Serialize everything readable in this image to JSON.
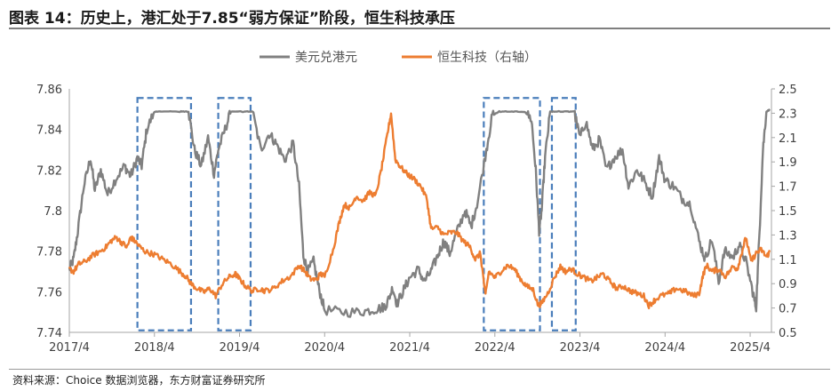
{
  "title": "图表 14：历史上，港汇处于7.85“弱方保证”阶段，恒生科技承压",
  "source": "资料来源：Choice 数据浏览器，东方财富证券研究所",
  "chart_data": {
    "type": "line",
    "x_tick_labels": [
      "2017/4",
      "2018/4",
      "2019/4",
      "2020/4",
      "2021/4",
      "2022/4",
      "2023/4",
      "2024/4",
      "2025/4"
    ],
    "x_range": [
      2017.25,
      2025.5
    ],
    "y_left": {
      "ticks": [
        "7.74",
        "7.76",
        "7.78",
        "7.8",
        "7.82",
        "7.84",
        "7.86"
      ],
      "range": [
        7.74,
        7.86
      ]
    },
    "y_right": {
      "ticks": [
        "0.5",
        "0.7",
        "0.9",
        "1.1",
        "1.3",
        "1.5",
        "1.7",
        "1.9",
        "2.1",
        "2.3",
        "2.5"
      ],
      "range": [
        0.5,
        2.5
      ]
    },
    "legend_position": "top-center",
    "colors": {
      "usdhkd": "#808080",
      "hstech": "#ED7D31",
      "box": "#4A7EBB"
    },
    "series": [
      {
        "name": "美元兑港元",
        "axis": "left",
        "points": [
          [
            2017.25,
            7.771
          ],
          [
            2017.3,
            7.776
          ],
          [
            2017.35,
            7.79
          ],
          [
            2017.42,
            7.812
          ],
          [
            2017.5,
            7.826
          ],
          [
            2017.55,
            7.81
          ],
          [
            2017.62,
            7.82
          ],
          [
            2017.7,
            7.808
          ],
          [
            2017.8,
            7.816
          ],
          [
            2017.9,
            7.822
          ],
          [
            2017.97,
            7.817
          ],
          [
            2018.05,
            7.826
          ],
          [
            2018.1,
            7.822
          ],
          [
            2018.16,
            7.84
          ],
          [
            2018.25,
            7.849
          ],
          [
            2018.4,
            7.849
          ],
          [
            2018.55,
            7.849
          ],
          [
            2018.65,
            7.849
          ],
          [
            2018.72,
            7.83
          ],
          [
            2018.8,
            7.822
          ],
          [
            2018.88,
            7.836
          ],
          [
            2018.95,
            7.818
          ],
          [
            2019.0,
            7.83
          ],
          [
            2019.08,
            7.84
          ],
          [
            2019.15,
            7.849
          ],
          [
            2019.28,
            7.849
          ],
          [
            2019.4,
            7.849
          ],
          [
            2019.5,
            7.83
          ],
          [
            2019.6,
            7.838
          ],
          [
            2019.68,
            7.833
          ],
          [
            2019.78,
            7.825
          ],
          [
            2019.88,
            7.833
          ],
          [
            2019.95,
            7.812
          ],
          [
            2020.0,
            7.778
          ],
          [
            2020.05,
            7.77
          ],
          [
            2020.12,
            7.775
          ],
          [
            2020.18,
            7.762
          ],
          [
            2020.25,
            7.751
          ],
          [
            2020.45,
            7.75
          ],
          [
            2020.65,
            7.75
          ],
          [
            2020.8,
            7.751
          ],
          [
            2020.92,
            7.752
          ],
          [
            2020.98,
            7.754
          ],
          [
            2021.05,
            7.762
          ],
          [
            2021.1,
            7.754
          ],
          [
            2021.18,
            7.761
          ],
          [
            2021.25,
            7.767
          ],
          [
            2021.35,
            7.771
          ],
          [
            2021.42,
            7.765
          ],
          [
            2021.5,
            7.77
          ],
          [
            2021.58,
            7.778
          ],
          [
            2021.65,
            7.785
          ],
          [
            2021.72,
            7.779
          ],
          [
            2021.8,
            7.789
          ],
          [
            2021.9,
            7.8
          ],
          [
            2021.97,
            7.792
          ],
          [
            2022.05,
            7.805
          ],
          [
            2022.15,
            7.83
          ],
          [
            2022.22,
            7.847
          ],
          [
            2022.3,
            7.849
          ],
          [
            2022.45,
            7.849
          ],
          [
            2022.6,
            7.849
          ],
          [
            2022.68,
            7.845
          ],
          [
            2022.73,
            7.82
          ],
          [
            2022.77,
            7.79
          ],
          [
            2022.8,
            7.8
          ],
          [
            2022.84,
            7.826
          ],
          [
            2022.9,
            7.849
          ],
          [
            2023.0,
            7.849
          ],
          [
            2023.1,
            7.849
          ],
          [
            2023.18,
            7.849
          ],
          [
            2023.25,
            7.836
          ],
          [
            2023.32,
            7.844
          ],
          [
            2023.4,
            7.83
          ],
          [
            2023.48,
            7.835
          ],
          [
            2023.56,
            7.82
          ],
          [
            2023.65,
            7.826
          ],
          [
            2023.75,
            7.83
          ],
          [
            2023.82,
            7.812
          ],
          [
            2023.92,
            7.82
          ],
          [
            2024.0,
            7.815
          ],
          [
            2024.1,
            7.807
          ],
          [
            2024.18,
            7.826
          ],
          [
            2024.25,
            7.815
          ],
          [
            2024.35,
            7.812
          ],
          [
            2024.45,
            7.806
          ],
          [
            2024.55,
            7.803
          ],
          [
            2024.65,
            7.785
          ],
          [
            2024.72,
            7.776
          ],
          [
            2024.8,
            7.786
          ],
          [
            2024.88,
            7.765
          ],
          [
            2024.95,
            7.78
          ],
          [
            2025.05,
            7.777
          ],
          [
            2025.12,
            7.783
          ],
          [
            2025.2,
            7.775
          ],
          [
            2025.28,
            7.76
          ],
          [
            2025.32,
            7.752
          ],
          [
            2025.36,
            7.79
          ],
          [
            2025.4,
            7.83
          ],
          [
            2025.44,
            7.849
          ],
          [
            2025.48,
            7.85
          ]
        ]
      },
      {
        "name": "恒生科技（右轴）",
        "axis": "right",
        "points": [
          [
            2017.25,
            1.02
          ],
          [
            2017.3,
            1.0
          ],
          [
            2017.36,
            1.06
          ],
          [
            2017.43,
            1.08
          ],
          [
            2017.52,
            1.13
          ],
          [
            2017.6,
            1.16
          ],
          [
            2017.68,
            1.2
          ],
          [
            2017.74,
            1.25
          ],
          [
            2017.8,
            1.28
          ],
          [
            2017.86,
            1.24
          ],
          [
            2017.93,
            1.2
          ],
          [
            2017.97,
            1.28
          ],
          [
            2018.02,
            1.25
          ],
          [
            2018.08,
            1.2
          ],
          [
            2018.15,
            1.16
          ],
          [
            2018.25,
            1.14
          ],
          [
            2018.35,
            1.1
          ],
          [
            2018.45,
            1.06
          ],
          [
            2018.55,
            1.0
          ],
          [
            2018.62,
            0.96
          ],
          [
            2018.68,
            0.9
          ],
          [
            2018.75,
            0.86
          ],
          [
            2018.83,
            0.83
          ],
          [
            2018.9,
            0.86
          ],
          [
            2018.97,
            0.8
          ],
          [
            2019.05,
            0.9
          ],
          [
            2019.12,
            0.95
          ],
          [
            2019.2,
            0.98
          ],
          [
            2019.25,
            0.94
          ],
          [
            2019.32,
            0.88
          ],
          [
            2019.4,
            0.84
          ],
          [
            2019.48,
            0.86
          ],
          [
            2019.55,
            0.84
          ],
          [
            2019.65,
            0.86
          ],
          [
            2019.75,
            0.92
          ],
          [
            2019.85,
            0.96
          ],
          [
            2019.95,
            1.05
          ],
          [
            2020.02,
            1.0
          ],
          [
            2020.08,
            0.94
          ],
          [
            2020.15,
            0.93
          ],
          [
            2020.2,
            0.98
          ],
          [
            2020.25,
            0.96
          ],
          [
            2020.35,
            1.18
          ],
          [
            2020.42,
            1.4
          ],
          [
            2020.48,
            1.55
          ],
          [
            2020.55,
            1.52
          ],
          [
            2020.62,
            1.62
          ],
          [
            2020.7,
            1.58
          ],
          [
            2020.78,
            1.65
          ],
          [
            2020.85,
            1.62
          ],
          [
            2020.92,
            1.85
          ],
          [
            2020.98,
            2.1
          ],
          [
            2021.03,
            2.3
          ],
          [
            2021.08,
            1.92
          ],
          [
            2021.14,
            1.86
          ],
          [
            2021.22,
            1.8
          ],
          [
            2021.3,
            1.76
          ],
          [
            2021.38,
            1.7
          ],
          [
            2021.45,
            1.6
          ],
          [
            2021.5,
            1.35
          ],
          [
            2021.58,
            1.36
          ],
          [
            2021.65,
            1.3
          ],
          [
            2021.72,
            1.32
          ],
          [
            2021.8,
            1.32
          ],
          [
            2021.88,
            1.25
          ],
          [
            2021.96,
            1.2
          ],
          [
            2022.02,
            1.1
          ],
          [
            2022.08,
            1.15
          ],
          [
            2022.14,
            0.8
          ],
          [
            2022.18,
            1.0
          ],
          [
            2022.25,
            0.95
          ],
          [
            2022.32,
            1.0
          ],
          [
            2022.4,
            1.05
          ],
          [
            2022.48,
            1.02
          ],
          [
            2022.55,
            0.94
          ],
          [
            2022.62,
            0.88
          ],
          [
            2022.7,
            0.85
          ],
          [
            2022.76,
            0.72
          ],
          [
            2022.8,
            0.74
          ],
          [
            2022.87,
            0.82
          ],
          [
            2022.95,
            0.95
          ],
          [
            2023.02,
            1.04
          ],
          [
            2023.08,
            1.0
          ],
          [
            2023.15,
            1.02
          ],
          [
            2023.22,
            0.98
          ],
          [
            2023.3,
            0.95
          ],
          [
            2023.38,
            0.92
          ],
          [
            2023.45,
            0.95
          ],
          [
            2023.52,
            0.98
          ],
          [
            2023.6,
            0.92
          ],
          [
            2023.68,
            0.86
          ],
          [
            2023.76,
            0.88
          ],
          [
            2023.84,
            0.84
          ],
          [
            2023.92,
            0.82
          ],
          [
            2024.0,
            0.8
          ],
          [
            2024.06,
            0.72
          ],
          [
            2024.12,
            0.76
          ],
          [
            2024.2,
            0.8
          ],
          [
            2024.3,
            0.82
          ],
          [
            2024.38,
            0.86
          ],
          [
            2024.48,
            0.84
          ],
          [
            2024.58,
            0.8
          ],
          [
            2024.65,
            0.82
          ],
          [
            2024.7,
            0.98
          ],
          [
            2024.74,
            1.05
          ],
          [
            2024.8,
            1.0
          ],
          [
            2024.88,
            1.02
          ],
          [
            2024.96,
            0.96
          ],
          [
            2025.05,
            1.04
          ],
          [
            2025.1,
            1.02
          ],
          [
            2025.16,
            1.18
          ],
          [
            2025.2,
            1.28
          ],
          [
            2025.26,
            1.08
          ],
          [
            2025.32,
            1.15
          ],
          [
            2025.38,
            1.18
          ],
          [
            2025.44,
            1.12
          ],
          [
            2025.48,
            1.16
          ]
        ]
      }
    ],
    "highlight_boxes": [
      {
        "x": [
          2018.05,
          2018.68
        ],
        "y_left": [
          7.741,
          7.8555
        ]
      },
      {
        "x": [
          2019.0,
          2019.38
        ],
        "y_left": [
          7.741,
          7.8555
        ]
      },
      {
        "x": [
          2022.12,
          2022.78
        ],
        "y_left": [
          7.741,
          7.8555
        ]
      },
      {
        "x": [
          2022.92,
          2023.2
        ],
        "y_left": [
          7.741,
          7.8555
        ]
      }
    ]
  }
}
